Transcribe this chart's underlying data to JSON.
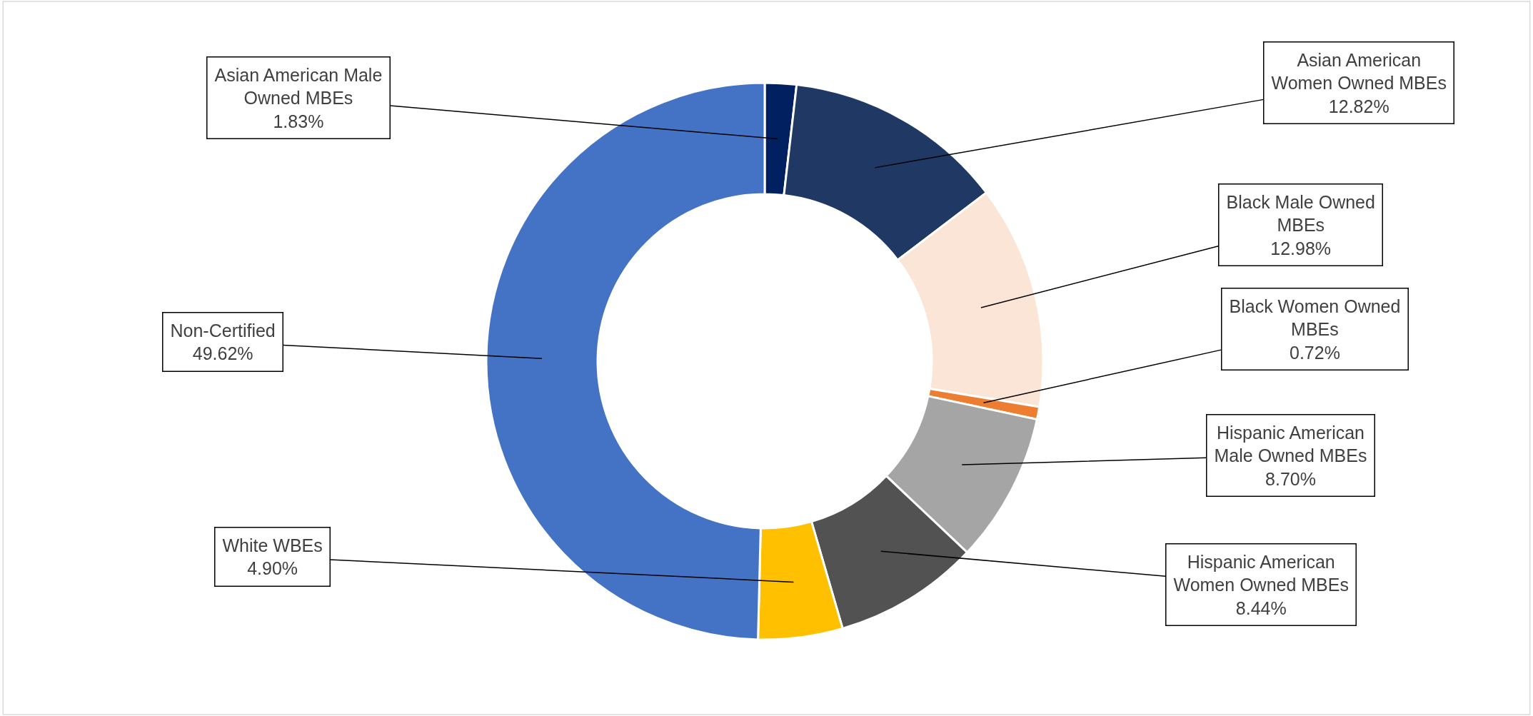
{
  "chart_data": {
    "type": "donut",
    "categories": [
      "Asian American Male Owned MBEs",
      "Asian American Women Owned MBEs",
      "Black Male Owned MBEs",
      "Black Women Owned MBEs",
      "Hispanic American Male Owned MBEs",
      "Hispanic American Women Owned MBEs",
      "White WBEs",
      "Non-Certified"
    ],
    "values": [
      1.83,
      12.82,
      12.98,
      0.72,
      8.7,
      8.44,
      4.9,
      49.62
    ],
    "value_labels": [
      "1.83%",
      "12.82%",
      "12.98%",
      "0.72%",
      "8.70%",
      "8.44%",
      "4.90%",
      "49.62%"
    ],
    "colors": [
      "#002060",
      "#1f3864",
      "#fbe5d6",
      "#ed7d31",
      "#a5a5a5",
      "#525252",
      "#ffc000",
      "#4472c4"
    ],
    "legend": false
  }
}
